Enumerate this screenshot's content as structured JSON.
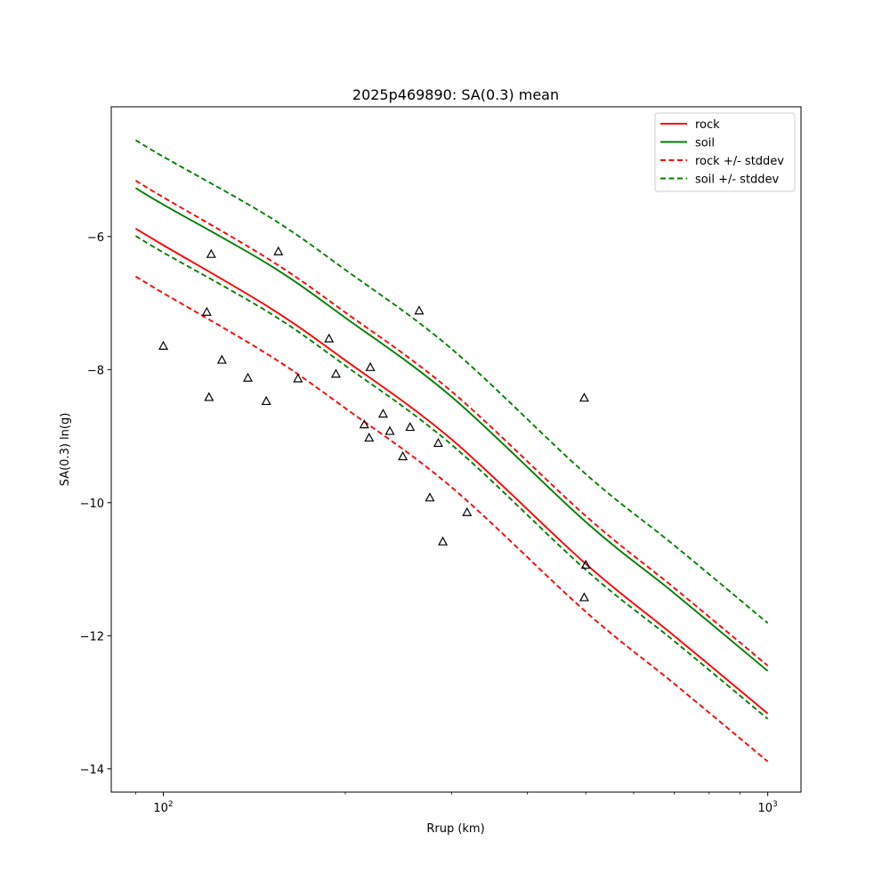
{
  "chart_data": {
    "type": "line",
    "title": "2025p469890: SA(0.3) mean",
    "xlabel": "Rrup (km)",
    "ylabel": "SA(0.3) ln(g)",
    "xscale": "log",
    "xlim": [
      82,
      1135
    ],
    "ylim": [
      -14.35,
      -4.05
    ],
    "xticks": [
      {
        "value": 100,
        "base": "10",
        "exp": "2"
      },
      {
        "value": 1000,
        "base": "10",
        "exp": "3"
      }
    ],
    "yticks": [
      {
        "value": -6,
        "label": "−6"
      },
      {
        "value": -8,
        "label": "−8"
      },
      {
        "value": -10,
        "label": "−10"
      },
      {
        "value": -12,
        "label": "−12"
      },
      {
        "value": -14,
        "label": "−14"
      }
    ],
    "legend_position": "top-right",
    "series": [
      {
        "name": "rock",
        "color": "#ff0000",
        "dash": "solid",
        "x": [
          90,
          100,
          150,
          200,
          300,
          500,
          700,
          1000
        ],
        "y": [
          -5.88,
          -6.13,
          -7.07,
          -7.86,
          -9.05,
          -10.92,
          -12.0,
          -13.17
        ]
      },
      {
        "name": "soil",
        "color": "#008000",
        "dash": "solid",
        "x": [
          90,
          100,
          150,
          200,
          300,
          500,
          700,
          1000
        ],
        "y": [
          -5.27,
          -5.52,
          -6.43,
          -7.22,
          -8.41,
          -10.29,
          -11.36,
          -12.53
        ]
      },
      {
        "name": "rock +/- stddev",
        "color": "#ff0000",
        "dash": "dashed",
        "x": [
          90,
          100,
          150,
          200,
          300,
          500,
          700,
          1000
        ],
        "y": [
          -5.16,
          -5.41,
          -6.35,
          -7.14,
          -8.33,
          -10.2,
          -11.28,
          -12.45
        ]
      },
      {
        "name": "",
        "color": "#ff0000",
        "dash": "dashed",
        "x": [
          90,
          100,
          150,
          200,
          300,
          500,
          700,
          1000
        ],
        "y": [
          -6.6,
          -6.85,
          -7.79,
          -8.58,
          -9.77,
          -11.64,
          -12.72,
          -13.89
        ]
      },
      {
        "name": "soil +/- stddev",
        "color": "#008000",
        "dash": "dashed",
        "x": [
          90,
          100,
          150,
          200,
          300,
          500,
          700,
          1000
        ],
        "y": [
          -4.55,
          -4.8,
          -5.71,
          -6.5,
          -7.69,
          -9.57,
          -10.64,
          -11.81
        ]
      },
      {
        "name": "",
        "color": "#008000",
        "dash": "dashed",
        "x": [
          90,
          100,
          150,
          200,
          300,
          500,
          700,
          1000
        ],
        "y": [
          -5.99,
          -6.24,
          -7.15,
          -7.94,
          -9.13,
          -11.01,
          -12.08,
          -13.25
        ]
      }
    ],
    "observations": {
      "marker": "triangle",
      "points": [
        {
          "x": 100,
          "y": -7.65
        },
        {
          "x": 118,
          "y": -7.14
        },
        {
          "x": 119,
          "y": -8.42
        },
        {
          "x": 120,
          "y": -6.27
        },
        {
          "x": 125,
          "y": -7.86
        },
        {
          "x": 138,
          "y": -8.13
        },
        {
          "x": 148,
          "y": -8.48
        },
        {
          "x": 155,
          "y": -6.23
        },
        {
          "x": 167,
          "y": -8.14
        },
        {
          "x": 188,
          "y": -7.54
        },
        {
          "x": 193,
          "y": -8.07
        },
        {
          "x": 215,
          "y": -8.83
        },
        {
          "x": 219,
          "y": -9.03
        },
        {
          "x": 220,
          "y": -7.97
        },
        {
          "x": 231,
          "y": -8.67
        },
        {
          "x": 237,
          "y": -8.93
        },
        {
          "x": 249,
          "y": -9.31
        },
        {
          "x": 256,
          "y": -8.87
        },
        {
          "x": 265,
          "y": -7.12
        },
        {
          "x": 276,
          "y": -9.93
        },
        {
          "x": 285,
          "y": -9.11
        },
        {
          "x": 290,
          "y": -10.59
        },
        {
          "x": 318,
          "y": -10.15
        },
        {
          "x": 497,
          "y": -8.43
        },
        {
          "x": 497,
          "y": -11.43
        },
        {
          "x": 500,
          "y": -10.94
        }
      ]
    }
  }
}
